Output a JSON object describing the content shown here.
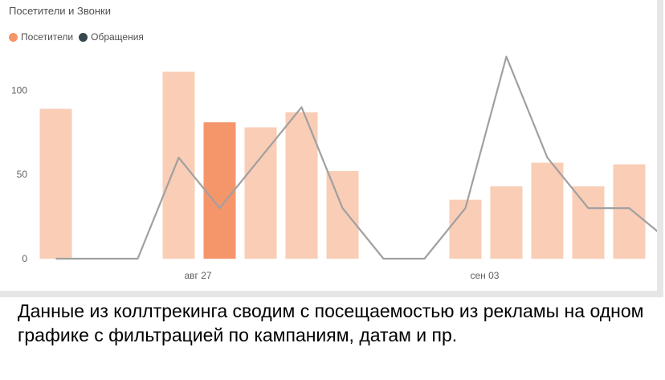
{
  "chart_data": {
    "type": "bar",
    "title": "Посетители и Звонки",
    "categories": [
      "2023-08-24",
      "2023-08-25",
      "2023-08-26",
      "2023-08-27",
      "2023-08-28",
      "2023-08-29",
      "2023-08-30",
      "2023-08-31",
      "2023-09-01",
      "2023-09-02",
      "2023-09-03",
      "2023-09-04",
      "2023-09-05",
      "2023-09-06",
      "2023-09-07",
      "2023-09-08"
    ],
    "x_tick_labels": [
      {
        "at": "2023-08-27",
        "label": "авг 27"
      },
      {
        "at": "2023-09-03",
        "label": "сен 03"
      }
    ],
    "series": [
      {
        "name": "Посетители",
        "kind": "bar",
        "color": "#f9cdb6",
        "highlight_color": "#f5956a",
        "highlight_category": "2023-08-28",
        "values": [
          89,
          0,
          0,
          111,
          81,
          78,
          87,
          52,
          0,
          0,
          35,
          43,
          57,
          43,
          56,
          0
        ]
      },
      {
        "name": "Обращения",
        "kind": "line",
        "color": "#a0a0a0",
        "legend_color": "#37474f",
        "values": [
          0,
          0,
          0,
          60,
          30,
          60,
          90,
          30,
          0,
          0,
          30,
          120,
          60,
          30,
          30,
          10
        ]
      }
    ],
    "ylim": [
      0,
      125
    ],
    "yticks": [
      0,
      50,
      100
    ],
    "grid": false,
    "legend": "top-left"
  },
  "caption": "Данные из коллтрекинга сводим с посещаемостью из рекламы на одном графике с фильтрацией по кампаниям, датам и пр."
}
